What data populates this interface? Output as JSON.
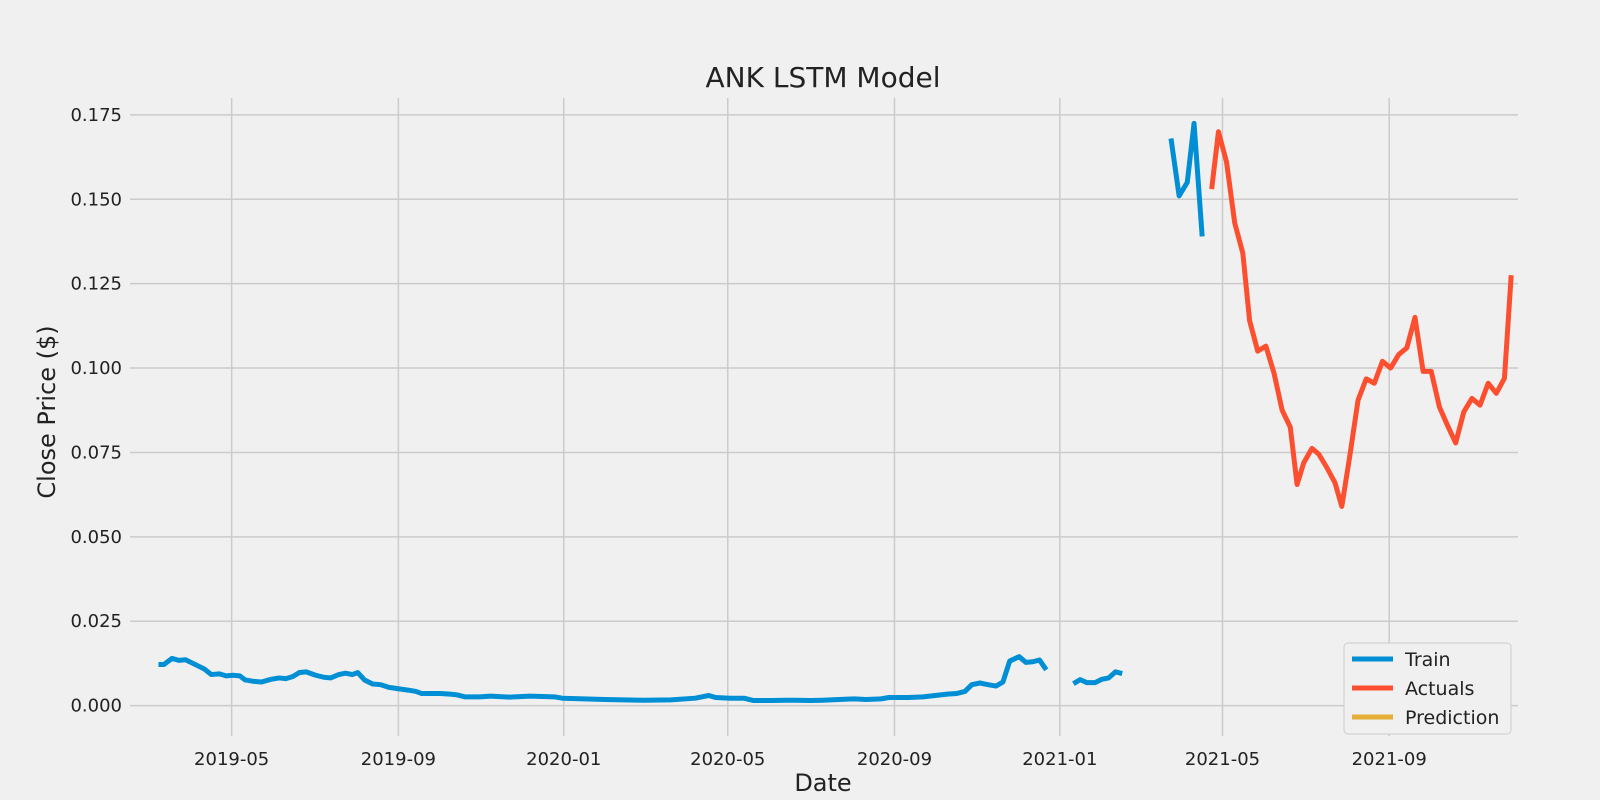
{
  "chart_data": {
    "type": "line",
    "title": "ANK LSTM Model",
    "xlabel": "Date",
    "ylabel": "Close Price ($)",
    "grid": true,
    "legend_position": "bottom-right",
    "xlim": [
      "2019-02-15",
      "2021-12-05"
    ],
    "ylim": [
      -0.009,
      0.18
    ],
    "x_ticks": [
      "2019-05-01",
      "2019-09-01",
      "2020-01-01",
      "2020-05-01",
      "2020-09-01",
      "2021-01-01",
      "2021-05-01",
      "2021-09-01"
    ],
    "x_tick_labels": [
      "2019-05",
      "2019-09",
      "2020-01",
      "2020-05",
      "2020-09",
      "2021-01",
      "2021-05",
      "2021-09"
    ],
    "y_ticks": [
      0.0,
      0.025,
      0.05,
      0.075,
      0.1,
      0.125,
      0.15,
      0.175
    ],
    "y_tick_labels": [
      "0.000",
      "0.025",
      "0.050",
      "0.075",
      "0.100",
      "0.125",
      "0.150",
      "0.175"
    ],
    "series": [
      {
        "name": "Train",
        "color": "#008fd5",
        "segments": [
          [
            [
              "2019-03-08",
              0.0122
            ],
            [
              "2019-03-12",
              0.0122
            ],
            [
              "2019-03-18",
              0.014
            ],
            [
              "2019-03-23",
              0.0134
            ],
            [
              "2019-03-28",
              0.0136
            ],
            [
              "2019-04-04",
              0.0122
            ],
            [
              "2019-04-11",
              0.0108
            ],
            [
              "2019-04-16",
              0.0092
            ],
            [
              "2019-04-22",
              0.0094
            ],
            [
              "2019-04-27",
              0.0088
            ],
            [
              "2019-05-02",
              0.009
            ],
            [
              "2019-05-07",
              0.0088
            ],
            [
              "2019-05-11",
              0.0076
            ],
            [
              "2019-05-17",
              0.0072
            ],
            [
              "2019-05-23",
              0.007
            ],
            [
              "2019-05-30",
              0.0078
            ],
            [
              "2019-06-05",
              0.0082
            ],
            [
              "2019-06-10",
              0.008
            ],
            [
              "2019-06-15",
              0.0086
            ],
            [
              "2019-06-20",
              0.0098
            ],
            [
              "2019-06-25",
              0.01
            ],
            [
              "2019-07-02",
              0.009
            ],
            [
              "2019-07-08",
              0.0084
            ],
            [
              "2019-07-13",
              0.0082
            ],
            [
              "2019-07-19",
              0.0092
            ],
            [
              "2019-07-24",
              0.0096
            ],
            [
              "2019-07-29",
              0.0092
            ],
            [
              "2019-08-02",
              0.0098
            ],
            [
              "2019-08-07",
              0.0076
            ],
            [
              "2019-08-13",
              0.0064
            ],
            [
              "2019-08-19",
              0.0062
            ],
            [
              "2019-08-25",
              0.0054
            ],
            [
              "2019-09-01",
              0.005
            ],
            [
              "2019-09-08",
              0.0046
            ],
            [
              "2019-09-14",
              0.0042
            ],
            [
              "2019-09-18",
              0.0036
            ],
            [
              "2019-09-25",
              0.0036
            ],
            [
              "2019-10-02",
              0.0036
            ],
            [
              "2019-10-09",
              0.0034
            ],
            [
              "2019-10-14",
              0.0032
            ],
            [
              "2019-10-20",
              0.0026
            ],
            [
              "2019-10-31",
              0.0026
            ],
            [
              "2019-11-08",
              0.0028
            ],
            [
              "2019-11-22",
              0.0025
            ],
            [
              "2019-12-07",
              0.0028
            ],
            [
              "2019-12-25",
              0.0026
            ],
            [
              "2019-12-31",
              0.0022
            ],
            [
              "2020-01-31",
              0.0018
            ],
            [
              "2020-02-29",
              0.0016
            ],
            [
              "2020-03-20",
              0.0017
            ],
            [
              "2020-04-07",
              0.0022
            ],
            [
              "2020-04-17",
              0.003
            ],
            [
              "2020-04-22",
              0.0024
            ],
            [
              "2020-05-03",
              0.0022
            ],
            [
              "2020-05-13",
              0.0022
            ],
            [
              "2020-05-20",
              0.0015
            ],
            [
              "2020-06-02",
              0.0015
            ],
            [
              "2020-06-13",
              0.0016
            ],
            [
              "2020-06-20",
              0.0016
            ],
            [
              "2020-07-01",
              0.0015
            ],
            [
              "2020-07-10",
              0.0016
            ],
            [
              "2020-07-22",
              0.0018
            ],
            [
              "2020-08-02",
              0.002
            ],
            [
              "2020-08-11",
              0.0018
            ],
            [
              "2020-08-22",
              0.002
            ],
            [
              "2020-08-28",
              0.0024
            ],
            [
              "2020-09-11",
              0.0024
            ],
            [
              "2020-09-22",
              0.0026
            ],
            [
              "2020-10-01",
              0.003
            ],
            [
              "2020-10-10",
              0.0034
            ],
            [
              "2020-10-17",
              0.0036
            ],
            [
              "2020-10-23",
              0.0042
            ],
            [
              "2020-10-28",
              0.0062
            ],
            [
              "2020-11-03",
              0.0067
            ],
            [
              "2020-11-09",
              0.0062
            ],
            [
              "2020-11-15",
              0.0058
            ],
            [
              "2020-11-20",
              0.007
            ],
            [
              "2020-11-25",
              0.0132
            ],
            [
              "2020-12-02",
              0.0145
            ],
            [
              "2020-12-07",
              0.0128
            ],
            [
              "2020-12-12",
              0.013
            ],
            [
              "2020-12-17",
              0.0135
            ],
            [
              "2020-12-22",
              0.0106
            ]
          ],
          [
            [
              "2021-01-11",
              0.0065
            ],
            [
              "2021-01-16",
              0.0077
            ],
            [
              "2021-01-21",
              0.0068
            ],
            [
              "2021-01-27",
              0.0068
            ],
            [
              "2021-02-01",
              0.0078
            ],
            [
              "2021-02-06",
              0.0082
            ],
            [
              "2021-02-11",
              0.01
            ],
            [
              "2021-02-16",
              0.0095
            ]
          ],
          [
            [
              "2021-03-24",
              0.168
            ],
            [
              "2021-03-30",
              0.151
            ],
            [
              "2021-04-05",
              0.155
            ],
            [
              "2021-04-10",
              0.1725
            ],
            [
              "2021-04-16",
              0.139
            ]
          ]
        ]
      },
      {
        "name": "Actuals",
        "color": "#fc4f30",
        "segments": [
          [
            [
              "2021-04-23",
              0.153
            ],
            [
              "2021-04-28",
              0.17
            ],
            [
              "2021-05-04",
              0.161
            ],
            [
              "2021-05-10",
              0.143
            ],
            [
              "2021-05-16",
              0.134
            ],
            [
              "2021-05-21",
              0.114
            ],
            [
              "2021-05-27",
              0.105
            ],
            [
              "2021-06-02",
              0.1065
            ],
            [
              "2021-06-08",
              0.0985
            ],
            [
              "2021-06-14",
              0.0875
            ],
            [
              "2021-06-20",
              0.0825
            ],
            [
              "2021-06-25",
              0.0655
            ],
            [
              "2021-06-30",
              0.072
            ],
            [
              "2021-07-06",
              0.0762
            ],
            [
              "2021-07-11",
              0.0745
            ],
            [
              "2021-07-17",
              0.0705
            ],
            [
              "2021-07-23",
              0.066
            ],
            [
              "2021-07-28",
              0.059
            ],
            [
              "2021-08-03",
              0.0742
            ],
            [
              "2021-08-09",
              0.0905
            ],
            [
              "2021-08-15",
              0.0968
            ],
            [
              "2021-08-21",
              0.0955
            ],
            [
              "2021-08-27",
              0.102
            ],
            [
              "2021-09-02",
              0.1
            ],
            [
              "2021-09-08",
              0.104
            ],
            [
              "2021-09-14",
              0.106
            ],
            [
              "2021-09-20",
              0.115
            ],
            [
              "2021-09-26",
              0.099
            ],
            [
              "2021-10-02",
              0.099
            ],
            [
              "2021-10-08",
              0.0885
            ],
            [
              "2021-10-14",
              0.083
            ],
            [
              "2021-10-20",
              0.0778
            ],
            [
              "2021-10-26",
              0.087
            ],
            [
              "2021-11-01",
              0.091
            ],
            [
              "2021-11-07",
              0.089
            ],
            [
              "2021-11-13",
              0.0955
            ],
            [
              "2021-11-19",
              0.0925
            ],
            [
              "2021-11-25",
              0.097
            ],
            [
              "2021-11-30",
              0.1275
            ]
          ]
        ]
      },
      {
        "name": "Prediction",
        "color": "#e5ae38",
        "segments": []
      }
    ]
  }
}
